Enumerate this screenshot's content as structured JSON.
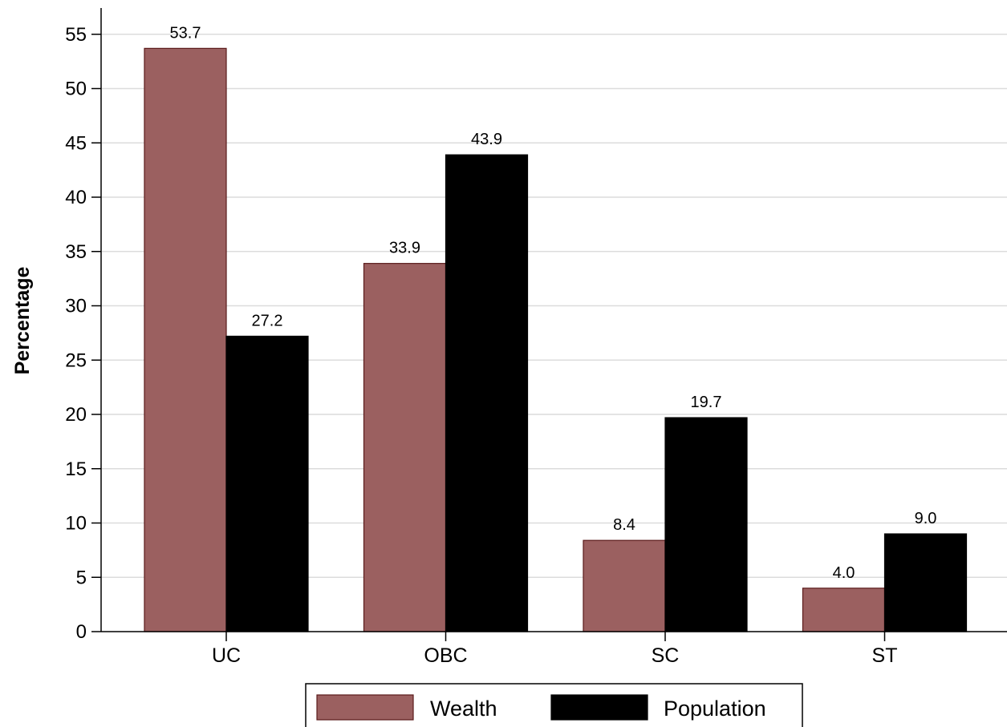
{
  "chart_data": {
    "type": "bar",
    "title": "",
    "xlabel": "",
    "ylabel": "Percentage",
    "categories": [
      "UC",
      "OBC",
      "SC",
      "ST"
    ],
    "series": [
      {
        "name": "Wealth",
        "values": [
          53.7,
          33.9,
          8.4,
          4.0
        ],
        "labels": [
          "53.7",
          "33.9",
          "8.4",
          "4.0"
        ],
        "color": "#9b6060"
      },
      {
        "name": "Population",
        "values": [
          27.2,
          43.9,
          19.7,
          9.0
        ],
        "labels": [
          "27.2",
          "43.9",
          "19.7",
          "9.0"
        ],
        "color": "#000000"
      }
    ],
    "ylim": [
      0,
      55
    ],
    "yticks": [
      0,
      5,
      10,
      15,
      20,
      25,
      30,
      35,
      40,
      45,
      50,
      55
    ],
    "grid": true,
    "legend_position": "bottom"
  }
}
